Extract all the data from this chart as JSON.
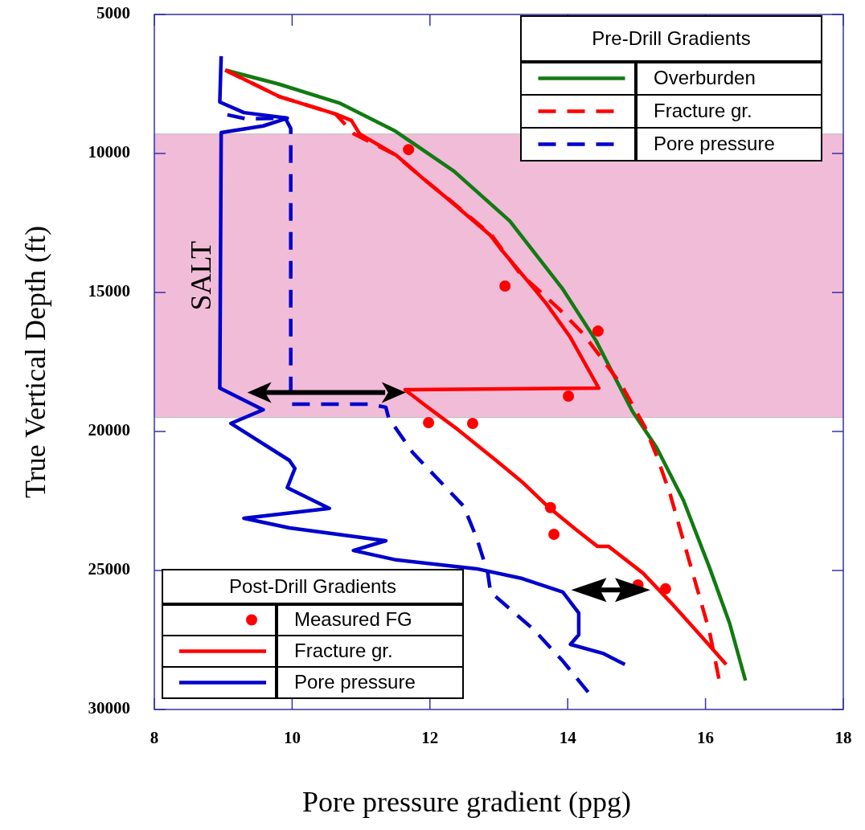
{
  "chart_data": {
    "type": "line",
    "xlabel": "Pore pressure gradient (ppg)",
    "ylabel": "True Vertical Depth (ft)",
    "xlim": [
      8,
      18
    ],
    "xticks": [
      8,
      10,
      12,
      14,
      16,
      18
    ],
    "ylim": [
      30000,
      5000
    ],
    "yticks": [
      5000,
      10000,
      15000,
      20000,
      25000,
      30000
    ],
    "grid": false,
    "legend": [
      "top right",
      "bottom left"
    ],
    "legend_title": [
      "Pre-Drill Gradients",
      "Post-Drill Gradients"
    ],
    "bands": [
      {
        "axis": "y",
        "from": 9300,
        "to": 19500,
        "label": "SALT",
        "color": "#f0bcd8"
      }
    ],
    "series": [
      {
        "name": "Overburden",
        "line_style": "solid",
        "color": "#127a12",
        "x": [
          9.03,
          9.8,
          10.7,
          11.5,
          12.35,
          13.16,
          13.92,
          14.41,
          14.94,
          15.29,
          15.68,
          16.06,
          16.35,
          16.58
        ],
        "values": [
          7000,
          7500,
          8200,
          9200,
          10640,
          12430,
          14850,
          16730,
          19280,
          20580,
          22480,
          24910,
          26900,
          28960
        ]
      },
      {
        "name": "Fracture gr.",
        "line_style": "dashed",
        "color": "#ff0000",
        "x": [
          9.03,
          9.81,
          10.63,
          10.9,
          11.5,
          11.9,
          12.3,
          12.9,
          13.3,
          13.6,
          13.87,
          14.23,
          14.77,
          15.12,
          15.29,
          15.48,
          15.68,
          15.88,
          16.06,
          16.2
        ],
        "values": [
          7000,
          7950,
          8580,
          9300,
          10050,
          10900,
          11700,
          12950,
          14300,
          14970,
          15580,
          16500,
          18290,
          19830,
          20870,
          22200,
          23930,
          25660,
          27220,
          28960
        ]
      },
      {
        "name": "Pore pressure",
        "line_style": "dashed",
        "color": "#0000cc",
        "x": [
          9.06,
          9.34,
          9.9,
          9.98,
          9.98,
          11.13,
          11.36,
          11.4,
          11.75,
          12.49,
          12.68,
          12.84,
          12.88,
          13.5,
          13.93,
          14.31
        ],
        "values": [
          8610,
          8760,
          8730,
          9100,
          19020,
          19020,
          19130,
          19510,
          20760,
          22690,
          23840,
          25090,
          25780,
          27110,
          28260,
          29420
        ]
      },
      {
        "name": "Measured FG",
        "type": "scatter",
        "marker": "circle",
        "color": "#ff0000",
        "x": [
          11.69,
          13.09,
          14.44,
          14.01,
          11.98,
          12.62,
          13.75,
          13.8,
          15.02,
          15.42
        ],
        "values": [
          9860,
          14770,
          16390,
          18730,
          19680,
          19710,
          22740,
          23700,
          25520,
          25660
        ]
      },
      {
        "name": "Fracture gr.",
        "line_style": "solid",
        "color": "#ff0000",
        "x": [
          9.03,
          9.81,
          10.63,
          10.86,
          10.98,
          11.51,
          11.91,
          12.29,
          12.88,
          13.02,
          13.43,
          13.69,
          14.04,
          14.45,
          11.64,
          11.91,
          12.41,
          12.96,
          13.34,
          13.73,
          14.13,
          14.43,
          14.59,
          15.09,
          15.53,
          15.95,
          16.3
        ],
        "values": [
          7000,
          7950,
          8580,
          8810,
          9300,
          10060,
          10920,
          11700,
          12950,
          13410,
          14620,
          15400,
          16620,
          18440,
          18500,
          19020,
          19940,
          21040,
          21820,
          22740,
          23550,
          24130,
          24130,
          25090,
          26240,
          27400,
          28380
        ]
      },
      {
        "name": "Pore pressure",
        "line_style": "solid",
        "color": "#0000cc",
        "x": [
          8.97,
          8.95,
          9.3,
          9.93,
          9.58,
          8.97,
          8.95,
          9.58,
          9.11,
          9.96,
          10.04,
          9.93,
          10.54,
          9.3,
          9.96,
          11.36,
          10.89,
          11.51,
          12.68,
          13.34,
          13.93,
          14.16,
          14.16,
          14.04,
          14.51,
          14.83
        ],
        "values": [
          6500,
          8150,
          8530,
          8730,
          9010,
          9250,
          18440,
          19220,
          19710,
          21040,
          21330,
          22020,
          22770,
          23120,
          23470,
          23930,
          24280,
          24620,
          24940,
          25290,
          25780,
          26530,
          27310,
          27660,
          27980,
          28380
        ]
      }
    ]
  }
}
